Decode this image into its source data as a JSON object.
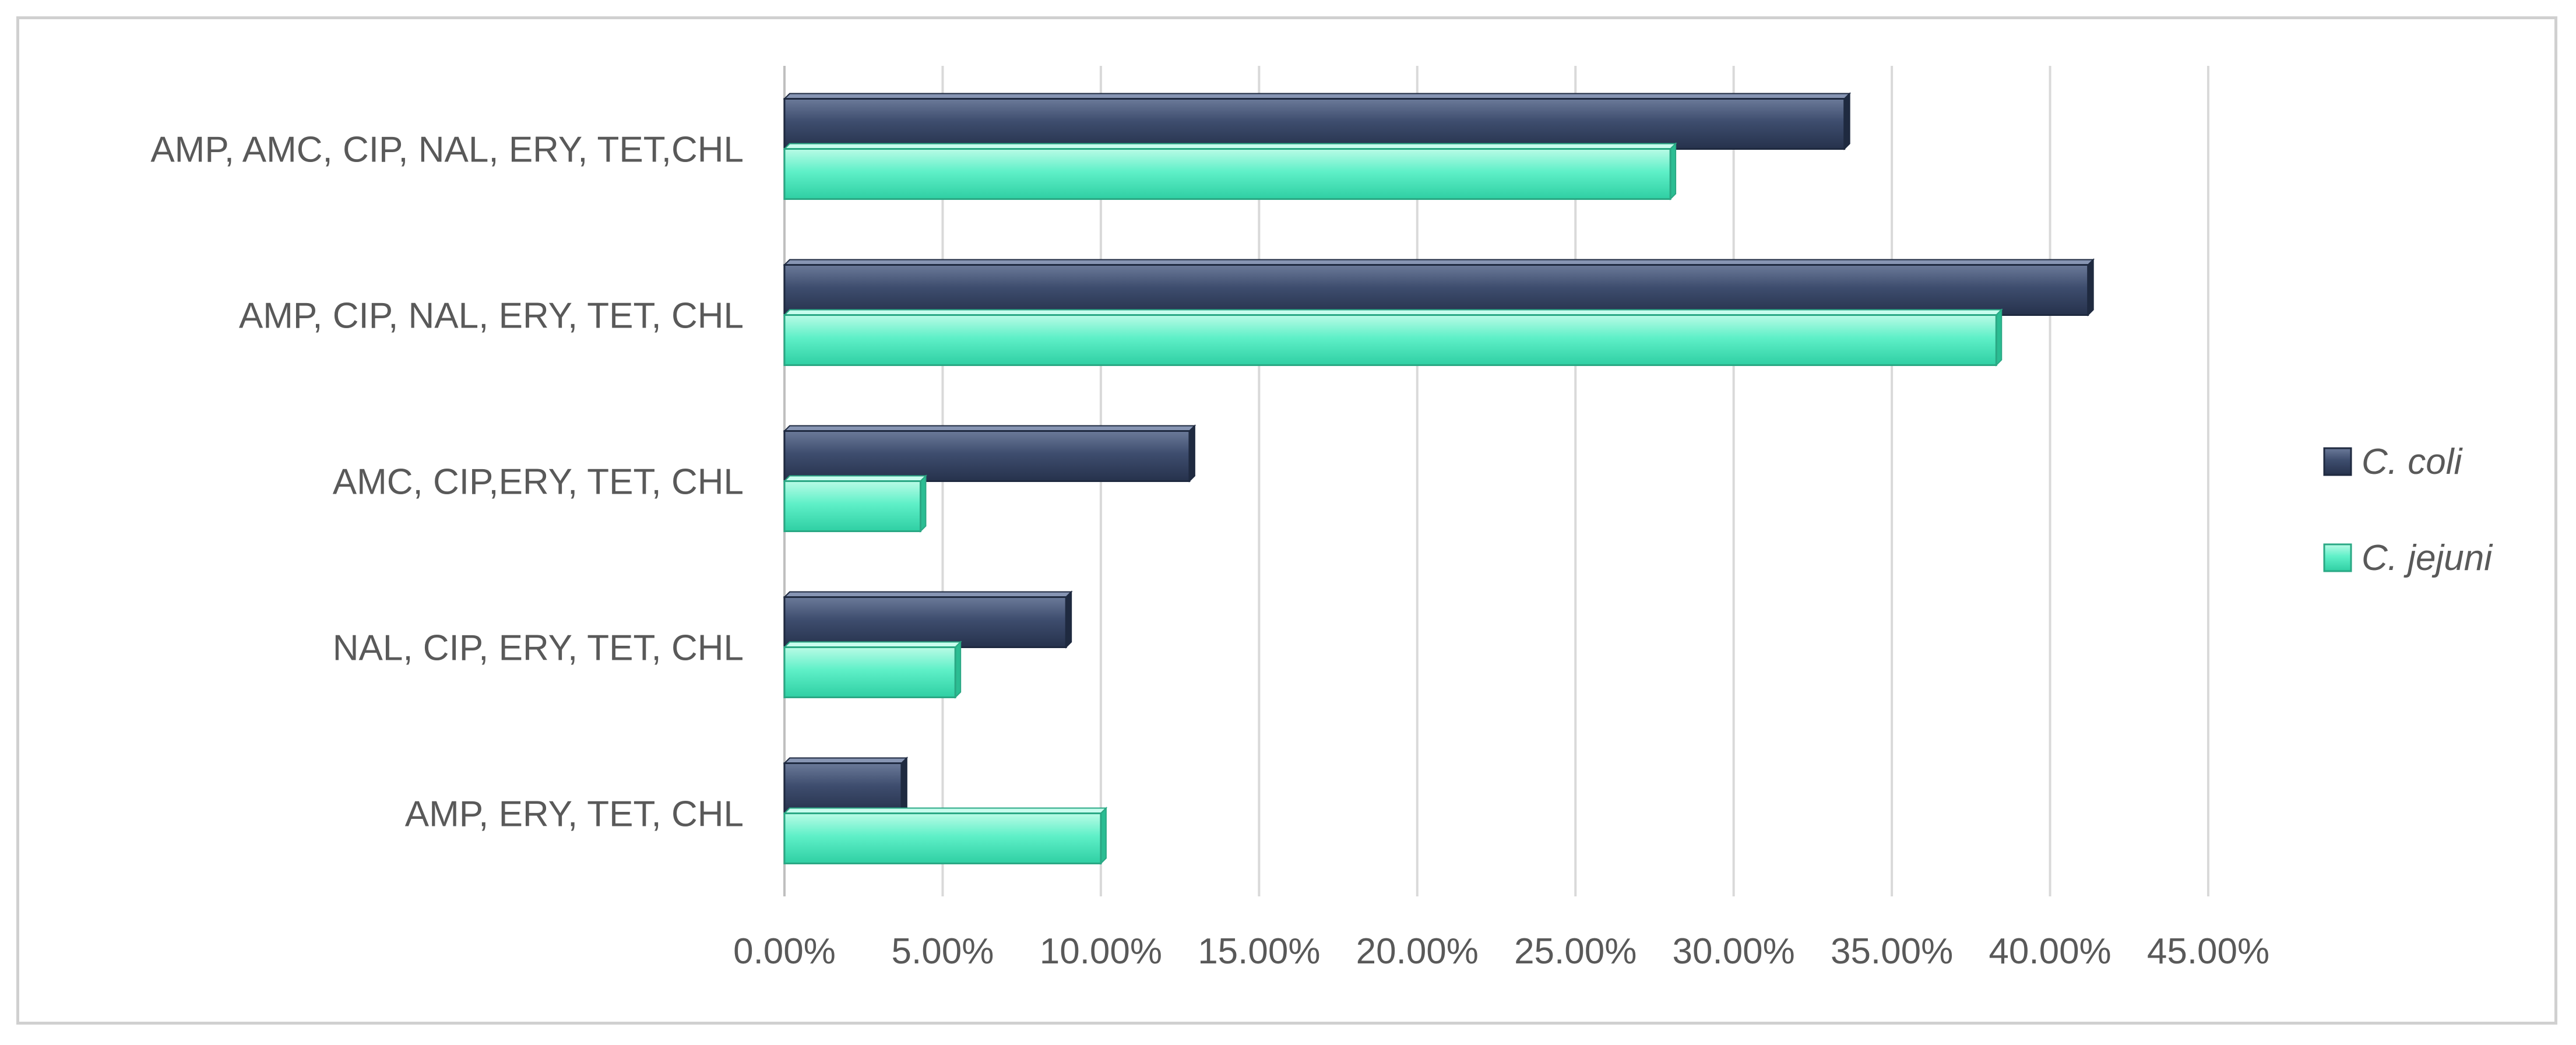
{
  "chart_data": {
    "type": "bar",
    "orientation": "horizontal",
    "style": "3d-clustered",
    "categories": [
      "AMP, AMC, CIP, NAL, ERY, TET,CHL",
      "AMP, CIP, NAL, ERY, TET, CHL",
      "AMC, CIP,ERY, TET, CHL",
      "NAL, CIP, ERY, TET, CHL",
      "AMP, ERY, TET, CHL"
    ],
    "series": [
      {
        "name": "C. coli",
        "values": [
          33.5,
          41.2,
          12.8,
          8.9,
          3.7
        ],
        "color": "#3b4a6b"
      },
      {
        "name": "C. jejuni",
        "values": [
          28.0,
          38.3,
          4.3,
          5.4,
          10.0
        ],
        "color": "#5ff0c8"
      }
    ],
    "xlim": [
      0,
      45
    ],
    "x_ticks": [
      "0.00%",
      "5.00%",
      "10.00%",
      "15.00%",
      "20.00%",
      "25.00%",
      "30.00%",
      "35.00%",
      "40.00%",
      "45.00%"
    ],
    "grid": true,
    "legend_position": "right",
    "title": "",
    "xlabel": "",
    "ylabel": ""
  }
}
